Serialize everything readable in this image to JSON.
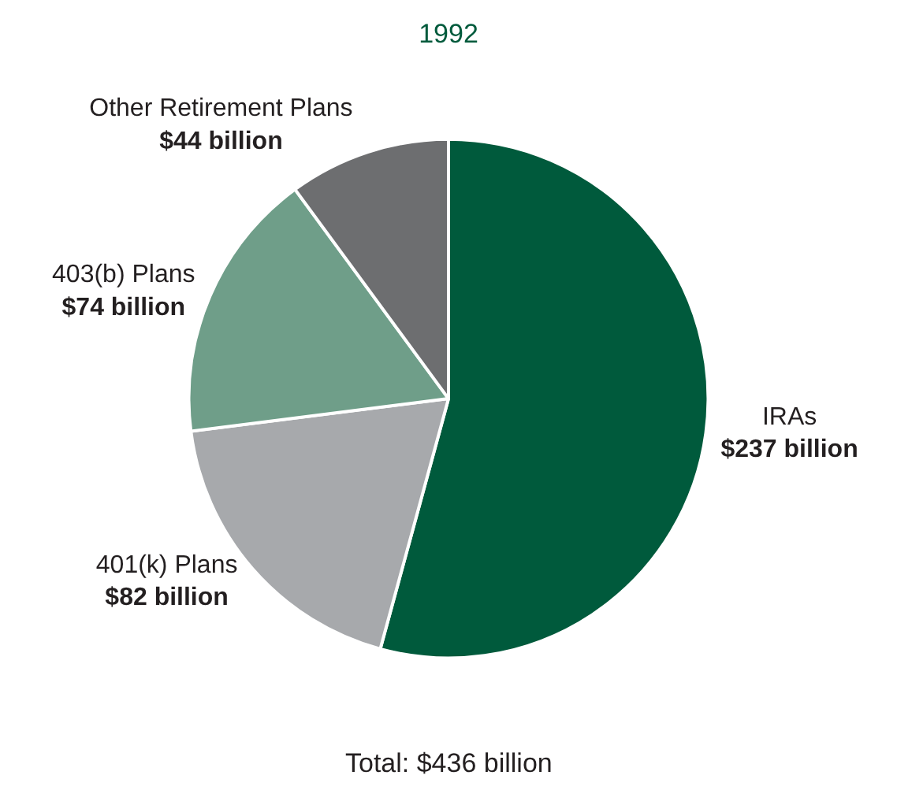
{
  "chart_data": {
    "type": "pie",
    "title": "1992",
    "categories": [
      "IRAs",
      "401(k) Plans",
      "403(b) Plans",
      "Other Retirement Plans"
    ],
    "values": [
      237,
      82,
      74,
      44
    ],
    "value_labels": [
      "$237 billion",
      "$82 billion",
      "$74 billion",
      "$44 billion"
    ],
    "colors": [
      "#005a3c",
      "#a7a9ac",
      "#6f9e89",
      "#6d6e70"
    ],
    "annotations": [
      "Total: $436 billion"
    ],
    "legend": false
  }
}
